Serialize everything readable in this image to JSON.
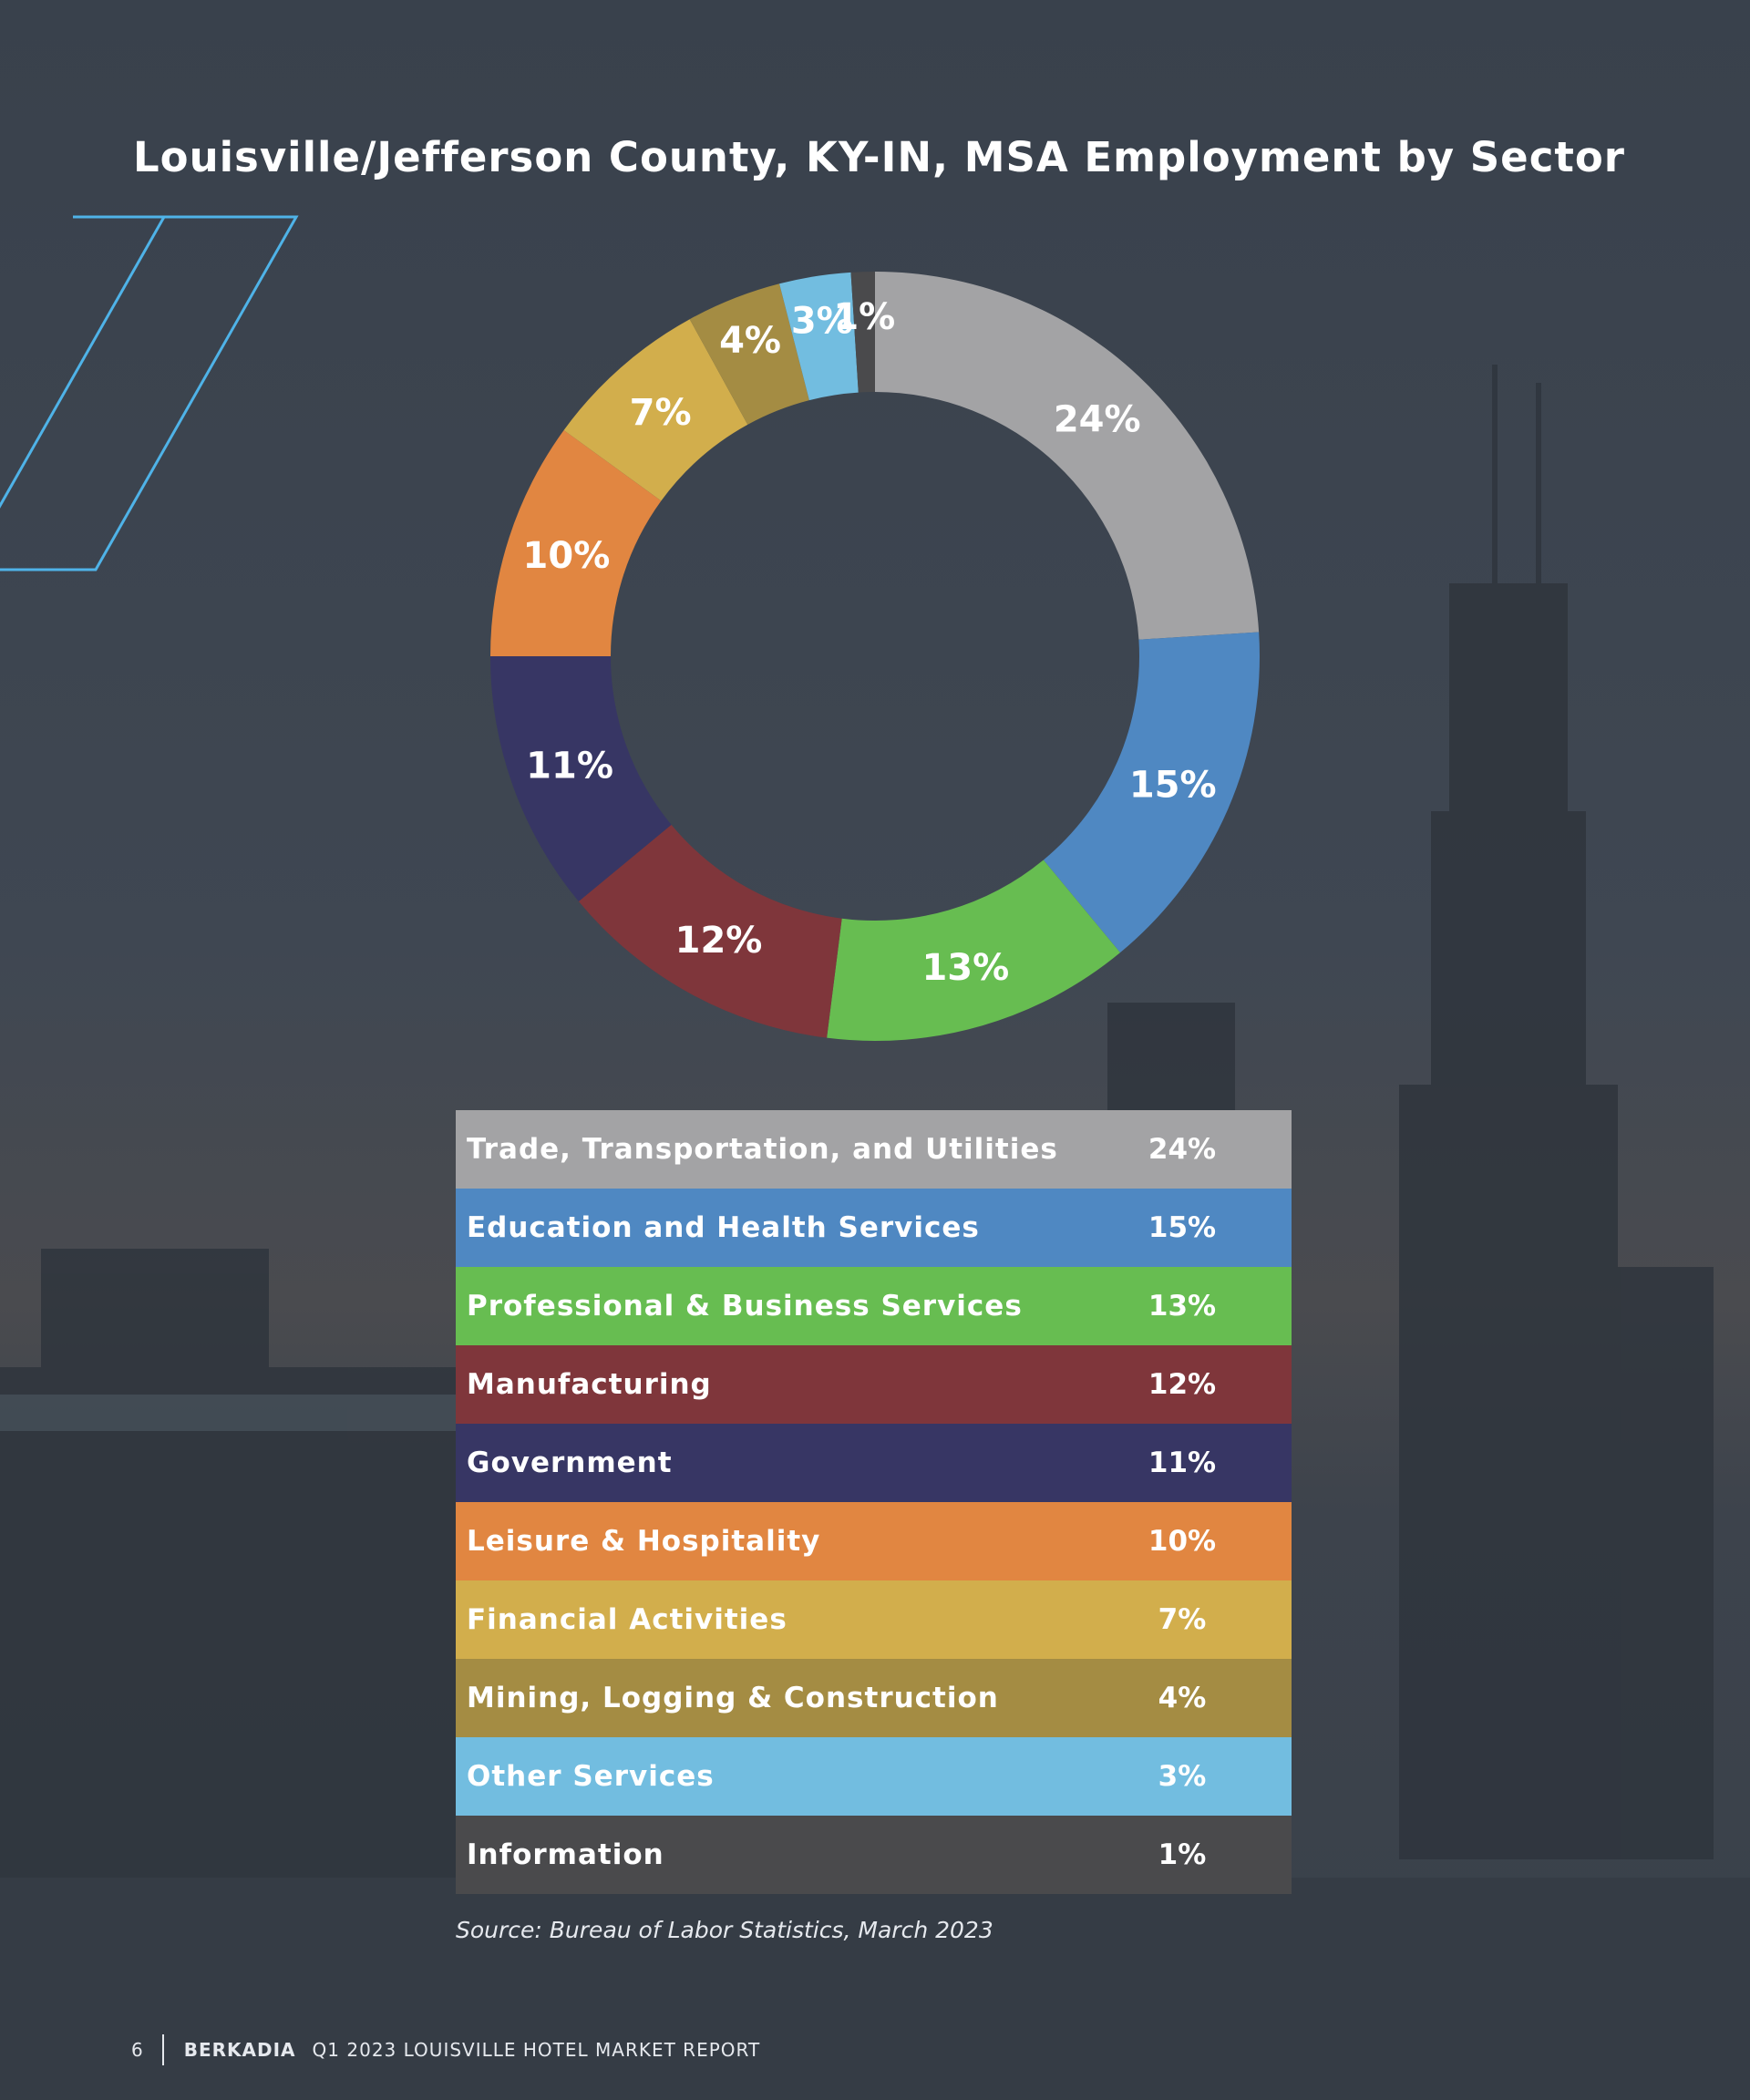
{
  "title": "Louisville/Jefferson County, KY-IN, MSA Employment by Sector",
  "chart_data": {
    "type": "pie",
    "title": "Louisville/Jefferson County, KY-IN, MSA Employment by Sector",
    "unit": "%",
    "series": [
      {
        "name": "Trade, Transportation, and Utilities",
        "value": 24,
        "label": "24%",
        "color": "#a3a3a5"
      },
      {
        "name": "Education and Health Services",
        "value": 15,
        "label": "15%",
        "color": "#4f88c2"
      },
      {
        "name": "Professional & Business Services",
        "value": 13,
        "label": "13%",
        "color": "#67bd51"
      },
      {
        "name": "Manufacturing",
        "value": 12,
        "label": "12%",
        "color": "#7f363b"
      },
      {
        "name": "Government",
        "value": 11,
        "label": "11%",
        "color": "#373664"
      },
      {
        "name": "Leisure & Hospitality",
        "value": 10,
        "label": "10%",
        "color": "#e18641"
      },
      {
        "name": "Financial Activities",
        "value": 7,
        "label": "7%",
        "color": "#d2ae4c"
      },
      {
        "name": "Mining, Logging & Construction",
        "value": 4,
        "label": "4%",
        "color": "#a48c43"
      },
      {
        "name": "Other Services",
        "value": 3,
        "label": "3%",
        "color": "#72bde0"
      },
      {
        "name": "Information",
        "value": 1,
        "label": "1%",
        "color": "#4a4a4c"
      }
    ]
  },
  "source": "Source: Bureau of Labor Statistics, March 2023",
  "footer": {
    "page_number": "6",
    "brand": "BERKADIA",
    "report": "Q1 2023 LOUISVILLE HOTEL MARKET REPORT"
  }
}
